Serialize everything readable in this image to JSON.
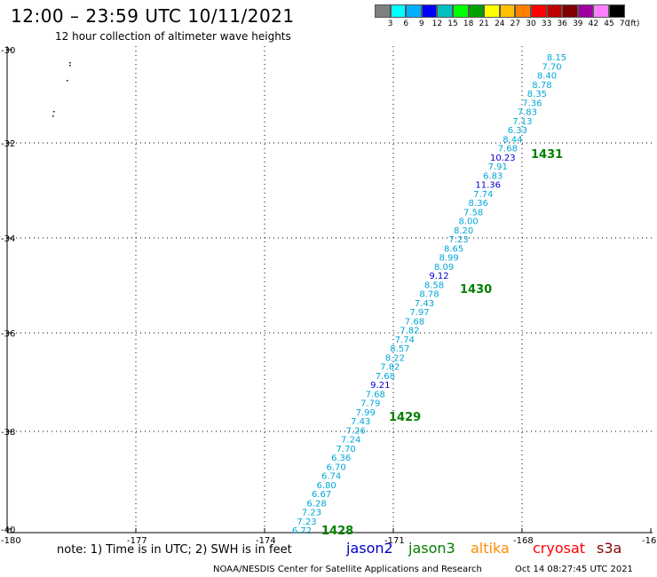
{
  "title": "12:00 – 23:59 UTC 10/11/2021",
  "subtitle": "12 hour collection of altimeter wave heights",
  "legend": {
    "colors": [
      "#808080",
      "#00ffff",
      "#00b0ff",
      "#0000ff",
      "#00c0c0",
      "#00ff00",
      "#00a000",
      "#ffff00",
      "#ffc000",
      "#ff8000",
      "#ff0000",
      "#c00000",
      "#800000",
      "#a000a0",
      "#ff80ff",
      "#000000"
    ],
    "labels": [
      "3",
      "6",
      "9",
      "12",
      "15",
      "18",
      "21",
      "24",
      "27",
      "30",
      "33",
      "36",
      "39",
      "42",
      "45",
      "70",
      "(ft)"
    ]
  },
  "axes": {
    "x_ticks": [
      "-180",
      "-177",
      "-174",
      "-171",
      "-168",
      "-16"
    ],
    "y_ticks": [
      "-30",
      "-32",
      "-34",
      "-36",
      "-38",
      "-40"
    ]
  },
  "track_values": [
    "8.15",
    "7.70",
    "8.40",
    "8.78",
    "8.35",
    "7.36",
    "7.83",
    "7.13",
    "6.33",
    "8.44",
    "7.68",
    "10.23",
    "7.91",
    "6.83",
    "11.36",
    "7.74",
    "8.36",
    "7.58",
    "8.00",
    "8.20",
    "7.23",
    "8.65",
    "8.99",
    "8.09",
    "9.12",
    "8.58",
    "8.78",
    "7.43",
    "7.97",
    "7.68",
    "7.82",
    "7.74",
    "8.57",
    "8.22",
    "7.82",
    "7.68",
    "9.21",
    "7.68",
    "7.79",
    "7.99",
    "7.43",
    "7.26",
    "7.24",
    "7.70",
    "6.36",
    "6.70",
    "6.74",
    "6.80",
    "6.67",
    "6.28",
    "7.23",
    "7.23",
    "6.72"
  ],
  "track_value_colors": {
    "jason2": "#0000cc",
    "other": "#00a8d8",
    "jason2_indices": [
      11,
      14,
      24,
      36
    ]
  },
  "time_labels": [
    "1431",
    "1430",
    "1429",
    "1428"
  ],
  "note": "note: 1) Time is in UTC; 2) SWH is in feet",
  "satellites": [
    {
      "name": "jason2",
      "color": "#0000cc"
    },
    {
      "name": "jason3",
      "color": "#008000"
    },
    {
      "name": "altika",
      "color": "#ff8c00"
    },
    {
      "name": "cryosat",
      "color": "#ff0000"
    },
    {
      "name": "s3a",
      "color": "#8b0000"
    }
  ],
  "credit": "NOAA/NESDIS Center for Satellite Applications and Research",
  "credit_date": "Oct 14 08:27:45 UTC 2021"
}
